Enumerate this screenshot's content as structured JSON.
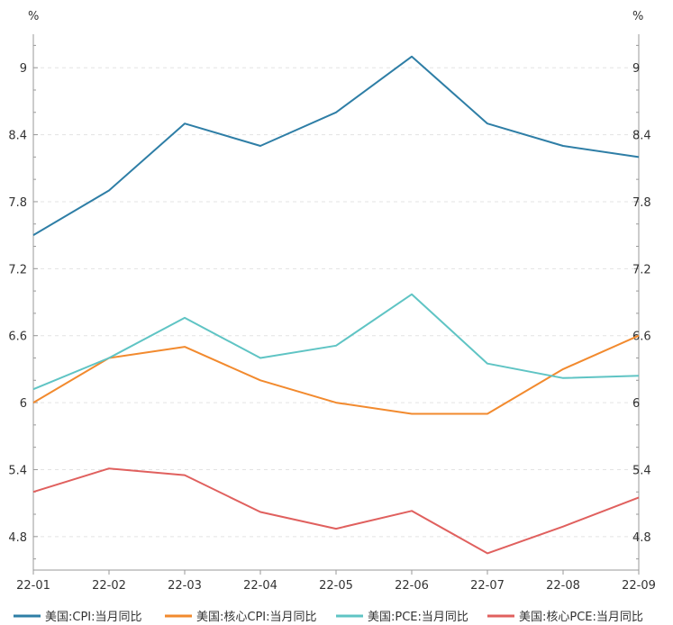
{
  "chart_data": {
    "type": "line",
    "categories": [
      "22-01",
      "22-02",
      "22-03",
      "22-04",
      "22-05",
      "22-06",
      "22-07",
      "22-08",
      "22-09"
    ],
    "ylim": [
      4.5,
      9.3
    ],
    "yticks": [
      4.8,
      5.4,
      6,
      6.6,
      7.2,
      7.8,
      8.4,
      9
    ],
    "ytick_labels": [
      "4.8",
      "5.4",
      "6",
      "6.6",
      "7.2",
      "7.8",
      "8.4",
      "9"
    ],
    "left_unit": "%",
    "right_unit": "%",
    "grid": true,
    "legend_position": "bottom",
    "series": [
      {
        "name": "美国:CPI:当月同比",
        "color": "#2e7ea6",
        "values": [
          7.5,
          7.9,
          8.5,
          8.3,
          8.6,
          9.1,
          8.5,
          8.3,
          8.2
        ]
      },
      {
        "name": "美国:核心CPI:当月同比",
        "color": "#f28a2e",
        "values": [
          6.0,
          6.4,
          6.5,
          6.2,
          6.0,
          5.9,
          5.9,
          6.3,
          6.6
        ]
      },
      {
        "name": "美国:PCE:当月同比",
        "color": "#5fc4c4",
        "values": [
          6.12,
          6.4,
          6.76,
          6.4,
          6.51,
          6.97,
          6.35,
          6.22,
          6.24
        ]
      },
      {
        "name": "美国:核心PCE:当月同比",
        "color": "#e0605e",
        "values": [
          5.2,
          5.41,
          5.35,
          5.02,
          4.87,
          5.03,
          4.65,
          4.89,
          5.15
        ]
      }
    ]
  }
}
